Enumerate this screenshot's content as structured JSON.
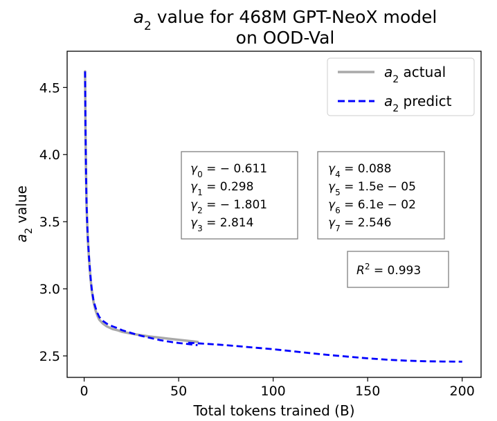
{
  "chart_data": {
    "type": "line",
    "title_line1_var": "a",
    "title_line1_sub": "2",
    "title_line1_rest": " value for 468M GPT-NeoX model",
    "title_line2": "on OOD-Val",
    "xlabel": "Total tokens trained (B)",
    "ylabel_var": "a",
    "ylabel_sub": "2",
    "ylabel_rest": " value",
    "xlim": [
      -9,
      210
    ],
    "ylim": [
      2.34,
      4.77
    ],
    "xticks": [
      0,
      50,
      100,
      150,
      200
    ],
    "xtick_labels": [
      "0",
      "50",
      "100",
      "150",
      "200"
    ],
    "yticks": [
      2.5,
      3.0,
      3.5,
      4.0,
      4.5
    ],
    "ytick_labels": [
      "2.5",
      "3.0",
      "3.5",
      "4.0",
      "4.5"
    ],
    "legend_position": "top-right",
    "series": [
      {
        "name": "a2 actual",
        "legend_var": "a",
        "legend_sub": "2",
        "legend_rest": " actual",
        "color": "#a9a9a9",
        "style": "solid",
        "x": [
          0.5,
          0.7,
          1,
          1.3,
          1.7,
          2,
          2.5,
          3,
          3.5,
          4,
          5,
          6,
          7,
          8,
          10,
          12,
          15,
          18,
          20,
          25,
          30,
          35,
          40,
          45,
          50,
          55,
          60
        ],
        "y": [
          4.62,
          4.2,
          3.85,
          3.62,
          3.45,
          3.36,
          3.24,
          3.14,
          3.06,
          2.99,
          2.9,
          2.84,
          2.8,
          2.77,
          2.74,
          2.72,
          2.7,
          2.69,
          2.68,
          2.666,
          2.654,
          2.644,
          2.636,
          2.628,
          2.62,
          2.612,
          2.604
        ]
      },
      {
        "name": "a2 predict",
        "legend_var": "a",
        "legend_sub": "2",
        "legend_rest": " predict",
        "color": "#0000ff",
        "style": "dashed",
        "segments": [
          {
            "x": [
              0.5,
              0.7,
              1,
              1.3,
              1.7,
              2,
              2.5,
              3,
              3.5,
              4,
              5,
              6,
              7,
              8,
              10,
              12,
              15,
              18,
              20,
              25,
              30,
              35,
              40,
              45,
              50,
              55,
              60
            ],
            "y": [
              4.62,
              4.2,
              3.85,
              3.62,
              3.46,
              3.37,
              3.25,
              3.15,
              3.07,
              3.0,
              2.91,
              2.86,
              2.82,
              2.79,
              2.76,
              2.74,
              2.72,
              2.705,
              2.692,
              2.67,
              2.65,
              2.634,
              2.618,
              2.606,
              2.596,
              2.588,
              2.58
            ]
          },
          {
            "x": [
              55,
              60,
              70,
              80,
              90,
              100,
              110,
              120,
              130,
              140,
              150,
              160,
              170,
              180,
              190,
              200
            ],
            "y": [
              2.598,
              2.594,
              2.585,
              2.574,
              2.562,
              2.55,
              2.535,
              2.52,
              2.506,
              2.494,
              2.482,
              2.472,
              2.465,
              2.46,
              2.458,
              2.457
            ]
          }
        ]
      }
    ],
    "annotations": {
      "box_left": [
        {
          "sym": "γ",
          "sub": "0",
          "rest": " = − 0.611"
        },
        {
          "sym": "γ",
          "sub": "1",
          "rest": " = 0.298"
        },
        {
          "sym": "γ",
          "sub": "2",
          "rest": " = − 1.801"
        },
        {
          "sym": "γ",
          "sub": "3",
          "rest": " = 2.814"
        }
      ],
      "box_right": [
        {
          "sym": "γ",
          "sub": "4",
          "rest": " = 0.088"
        },
        {
          "sym": "γ",
          "sub": "5",
          "rest": " = 1.5e − 05"
        },
        {
          "sym": "γ",
          "sub": "6",
          "rest": " = 6.1e − 02"
        },
        {
          "sym": "γ",
          "sub": "7",
          "rest": " = 2.546"
        }
      ],
      "r2": {
        "sym": "R",
        "sup": "2",
        "rest": " = 0.993"
      }
    }
  }
}
